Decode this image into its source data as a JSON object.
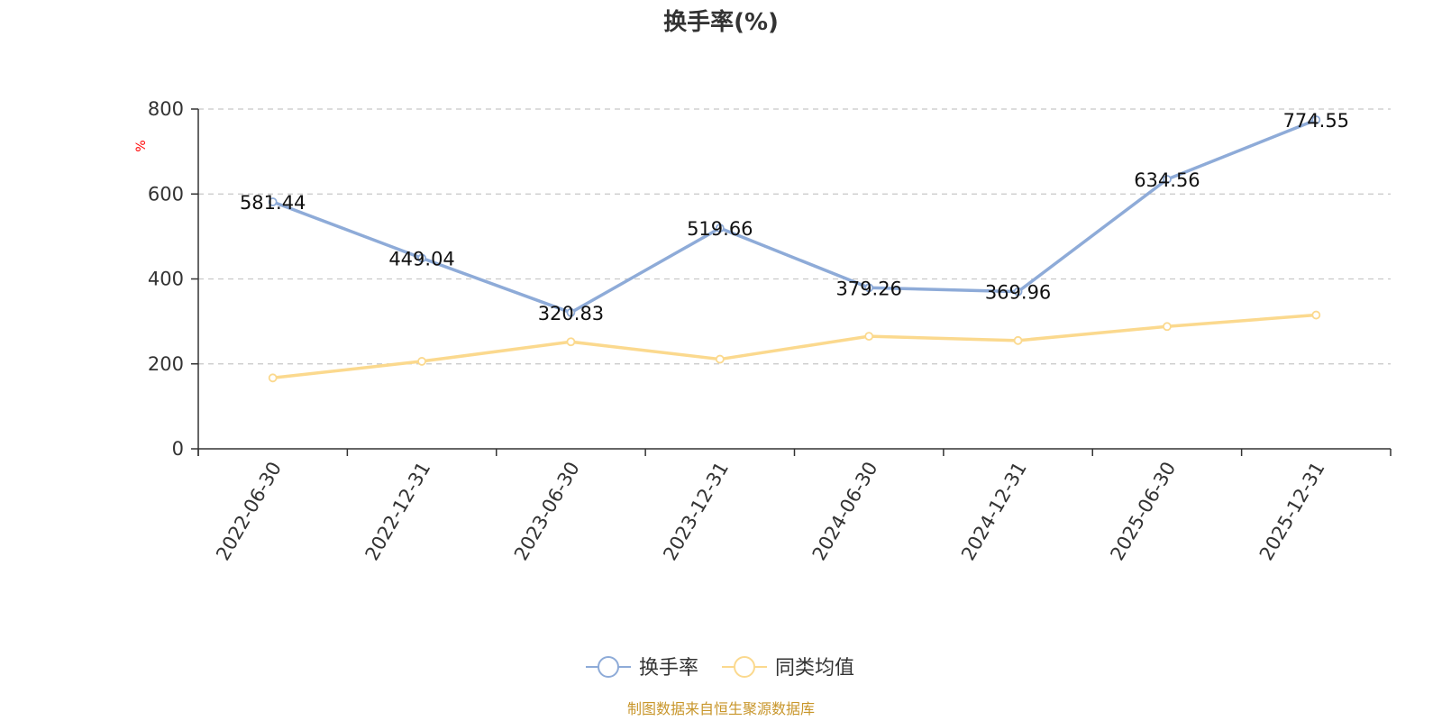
{
  "chart_data": {
    "type": "line",
    "title": "换手率(%)",
    "ylabel": "%",
    "xlabel": "",
    "ylim": [
      0,
      800
    ],
    "yticks": [
      0,
      200,
      400,
      600,
      800
    ],
    "grid": true,
    "categories": [
      "2022-06-30",
      "2022-12-31",
      "2023-06-30",
      "2023-12-31",
      "2024-06-30",
      "2024-12-31",
      "2025-06-30",
      "2025-12-31"
    ],
    "series": [
      {
        "name": "换手率",
        "color": "#8eabd8",
        "values": [
          581.44,
          449.04,
          320.83,
          519.66,
          379.26,
          369.96,
          634.56,
          774.55
        ],
        "labels": [
          "581.44",
          "449.04",
          "320.83",
          "519.66",
          "379.26",
          "369.96",
          "634.56",
          "774.55"
        ]
      },
      {
        "name": "同类均值",
        "color": "#fbd98e",
        "values": [
          167,
          206,
          252,
          211,
          265,
          255,
          288,
          315
        ]
      }
    ],
    "legend_position": "bottom-center",
    "source": "制图数据来自恒生聚源数据库",
    "source_color": "#c8962b"
  }
}
